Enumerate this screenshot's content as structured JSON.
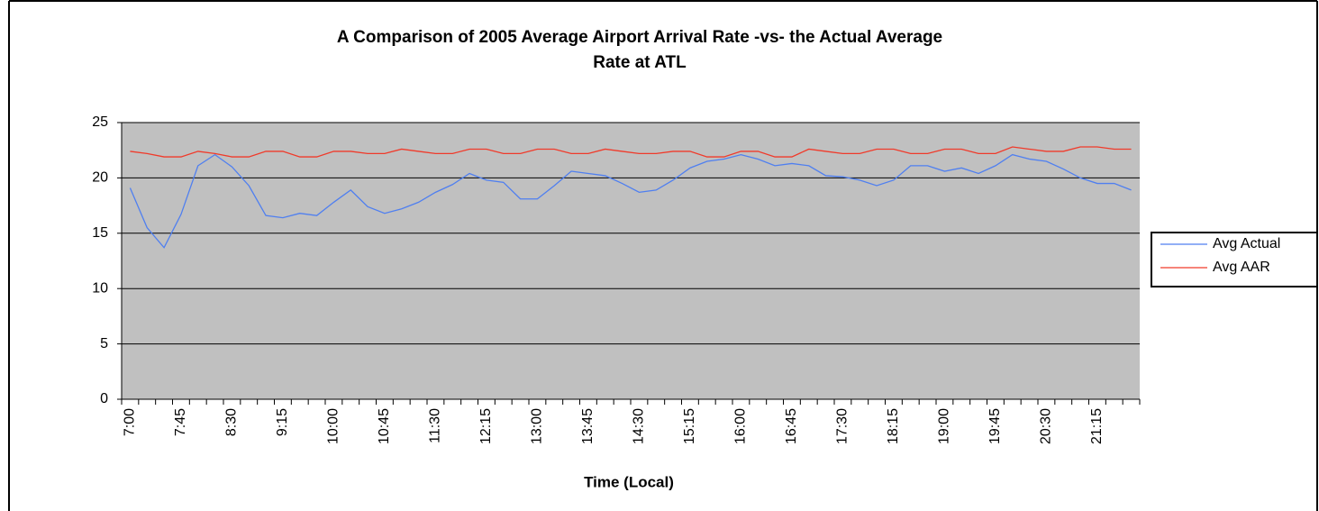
{
  "chart_data": {
    "type": "line",
    "title": [
      "A Comparison of 2005 Average Airport Arrival Rate -vs- the Actual Average",
      "Rate at ATL"
    ],
    "x_label": "Time (Local)",
    "categories": [
      "7:00",
      null,
      null,
      "7:45",
      null,
      null,
      "8:30",
      null,
      null,
      "9:15",
      null,
      null,
      "10:00",
      null,
      null,
      "10:45",
      null,
      null,
      "11:30",
      null,
      null,
      "12:15",
      null,
      null,
      "13:00",
      null,
      null,
      "13:45",
      null,
      null,
      "14:30",
      null,
      null,
      "15:15",
      null,
      null,
      "16:00",
      null,
      null,
      "16:45",
      null,
      null,
      "17:30",
      null,
      null,
      "18:15",
      null,
      null,
      "19:00",
      null,
      null,
      "19:45",
      null,
      null,
      "20:30",
      null,
      null,
      "21:15",
      null,
      null
    ],
    "series": [
      {
        "name": "Avg Actual",
        "color": "#4f7ff0",
        "values": [
          19.1,
          15.5,
          13.7,
          16.7,
          21.1,
          22.1,
          21.0,
          19.3,
          16.6,
          16.4,
          16.8,
          16.6,
          17.8,
          18.9,
          17.4,
          16.8,
          17.2,
          17.8,
          18.7,
          19.4,
          20.4,
          19.8,
          19.6,
          18.1,
          18.1,
          19.3,
          20.6,
          20.4,
          20.2,
          19.5,
          18.7,
          18.9,
          19.8,
          20.9,
          21.5,
          21.7,
          22.1,
          21.7,
          21.1,
          21.3,
          21.1,
          20.2,
          20.1,
          19.8,
          19.3,
          19.8,
          21.1,
          21.1,
          20.6,
          20.9,
          20.4,
          21.1,
          22.1,
          21.7,
          21.5,
          20.8,
          20.0,
          19.5,
          19.5,
          18.9
        ]
      },
      {
        "name": "Avg AAR",
        "color": "#f03a2a",
        "values": [
          22.4,
          22.2,
          21.9,
          21.9,
          22.4,
          22.2,
          21.9,
          21.9,
          22.4,
          22.4,
          21.9,
          21.9,
          22.4,
          22.4,
          22.2,
          22.2,
          22.6,
          22.4,
          22.2,
          22.2,
          22.6,
          22.6,
          22.2,
          22.2,
          22.6,
          22.6,
          22.2,
          22.2,
          22.6,
          22.4,
          22.2,
          22.2,
          22.4,
          22.4,
          21.9,
          21.9,
          22.4,
          22.4,
          21.9,
          21.9,
          22.6,
          22.4,
          22.2,
          22.2,
          22.6,
          22.6,
          22.2,
          22.2,
          22.6,
          22.6,
          22.2,
          22.2,
          22.8,
          22.6,
          22.4,
          22.4,
          22.8,
          22.8,
          22.6,
          22.6
        ]
      }
    ],
    "ylim": [
      0,
      25
    ],
    "yticks": [
      0,
      5,
      10,
      15,
      20,
      25
    ],
    "grid": true,
    "legend": "right"
  }
}
